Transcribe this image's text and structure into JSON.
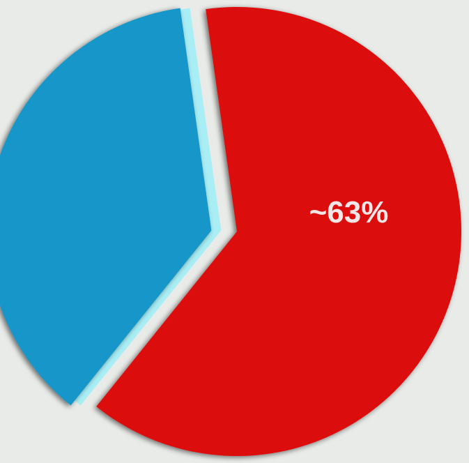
{
  "background_color": "#e9ebe8",
  "chart_data": {
    "type": "pie",
    "title": "",
    "slices": [
      {
        "value": 63,
        "color": "#dc0b0b",
        "label": "~63%"
      },
      {
        "value": 37,
        "color": "#1596c9",
        "label": ""
      }
    ],
    "exploded_slice": "blue",
    "separator_color": "#a9eef5"
  }
}
